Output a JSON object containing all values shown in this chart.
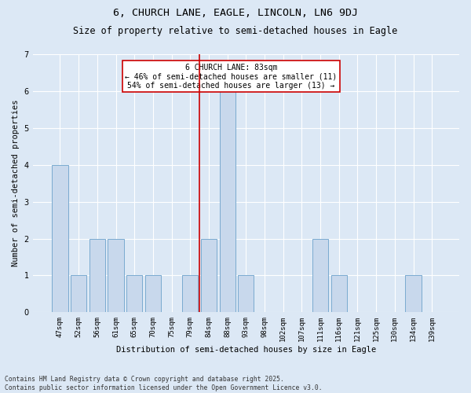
{
  "title": "6, CHURCH LANE, EAGLE, LINCOLN, LN6 9DJ",
  "subtitle": "Size of property relative to semi-detached houses in Eagle",
  "xlabel": "Distribution of semi-detached houses by size in Eagle",
  "ylabel": "Number of semi-detached properties",
  "categories": [
    "47sqm",
    "52sqm",
    "56sqm",
    "61sqm",
    "65sqm",
    "70sqm",
    "75sqm",
    "79sqm",
    "84sqm",
    "88sqm",
    "93sqm",
    "98sqm",
    "102sqm",
    "107sqm",
    "111sqm",
    "116sqm",
    "121sqm",
    "125sqm",
    "130sqm",
    "134sqm",
    "139sqm"
  ],
  "values": [
    4,
    1,
    2,
    2,
    1,
    1,
    0,
    1,
    2,
    6,
    1,
    0,
    0,
    0,
    2,
    1,
    0,
    0,
    0,
    1,
    0
  ],
  "bar_color": "#c8d8ec",
  "bar_edgecolor": "#7aaad0",
  "property_index": 8,
  "property_sqm": 83,
  "red_line_color": "#cc0000",
  "annotation_text": "6 CHURCH LANE: 83sqm\n← 46% of semi-detached houses are smaller (11)\n54% of semi-detached houses are larger (13) →",
  "annotation_box_edgecolor": "#cc0000",
  "annotation_box_facecolor": "#ffffff",
  "ylim": [
    0,
    7
  ],
  "yticks": [
    0,
    1,
    2,
    3,
    4,
    5,
    6,
    7
  ],
  "footer": "Contains HM Land Registry data © Crown copyright and database right 2025.\nContains public sector information licensed under the Open Government Licence v3.0.",
  "bg_color": "#dce8f5",
  "plot_bg_color": "#dce8f5",
  "title_fontsize": 9.5,
  "subtitle_fontsize": 8.5,
  "tick_fontsize": 6.5,
  "ylabel_fontsize": 7.5,
  "xlabel_fontsize": 7.5,
  "annotation_fontsize": 7,
  "footer_fontsize": 5.8
}
